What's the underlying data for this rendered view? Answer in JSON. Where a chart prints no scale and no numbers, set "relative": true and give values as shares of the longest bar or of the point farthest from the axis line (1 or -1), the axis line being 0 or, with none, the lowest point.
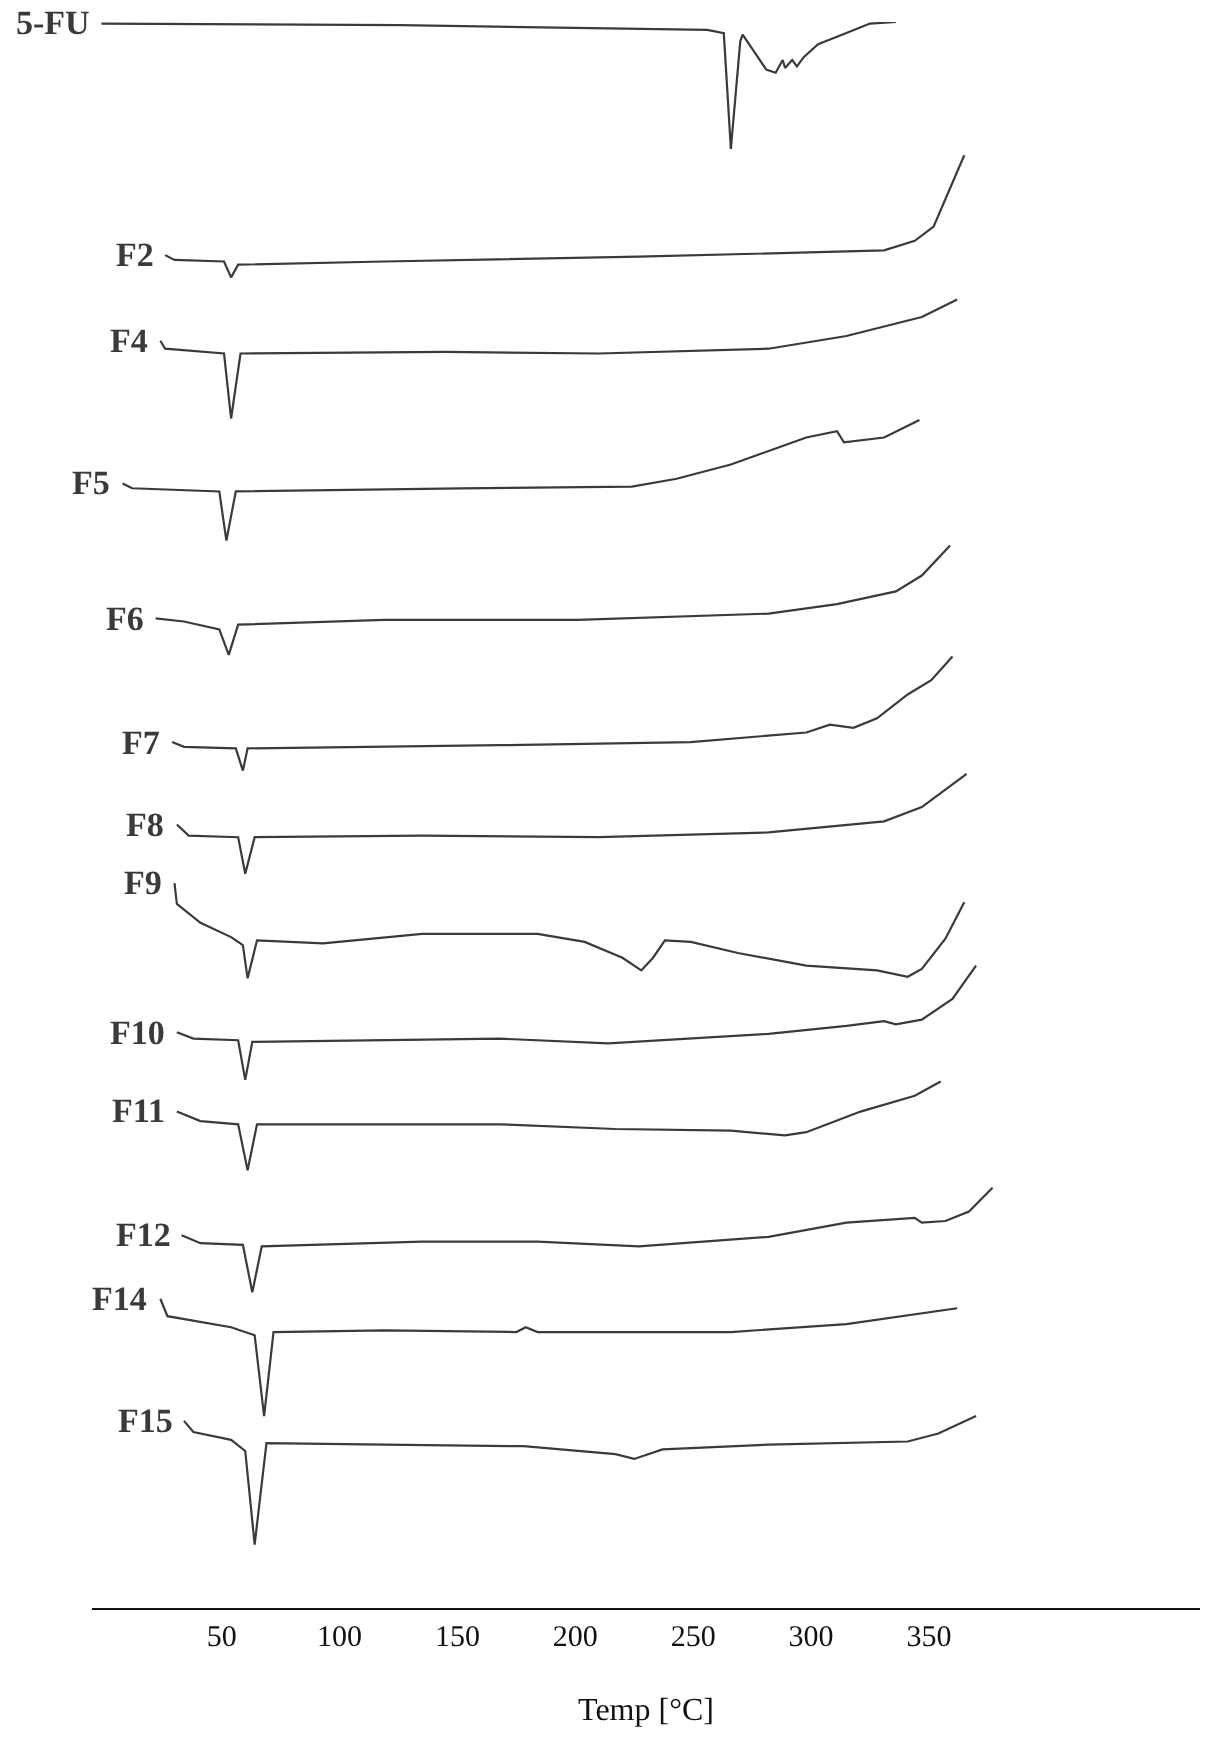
{
  "chart_data": {
    "type": "line",
    "relative": true,
    "xlabel": "Temp [°C]",
    "xlim": [
      -5,
      465
    ],
    "xticks": [
      50,
      100,
      150,
      200,
      250,
      300,
      350
    ],
    "tick_labels": "x",
    "series": [
      {
        "name": "5-FU",
        "color": "#3a3a3a",
        "x": [
          -1,
          126,
          256,
          263,
          266,
          270,
          271,
          281,
          285,
          288,
          289,
          292,
          294,
          297,
          303,
          315,
          325,
          336
        ],
        "values": [
          0.999,
          0.998,
          0.995,
          0.993,
          0.92,
          0.988,
          0.992,
          0.97,
          0.968,
          0.976,
          0.971,
          0.976,
          0.972,
          0.978,
          0.986,
          0.993,
          0.999,
          1.0
        ]
      },
      {
        "name": "F2",
        "color": "#3a3a3a",
        "x": [
          26,
          30,
          51,
          54,
          57,
          119,
          227,
          331,
          344,
          352,
          365
        ],
        "values": [
          0.853,
          0.85,
          0.849,
          0.839,
          0.847,
          0.849,
          0.852,
          0.856,
          0.862,
          0.871,
          0.916
        ]
      },
      {
        "name": "F4",
        "color": "#3a3a3a",
        "x": [
          24,
          26,
          51,
          54,
          58,
          145,
          210,
          282,
          315,
          347,
          362
        ],
        "values": [
          0.799,
          0.794,
          0.791,
          0.75,
          0.791,
          0.792,
          0.791,
          0.794,
          0.802,
          0.814,
          0.825
        ]
      },
      {
        "name": "F5",
        "color": "#3a3a3a",
        "x": [
          8,
          12,
          49,
          52,
          56,
          152,
          224,
          243,
          266,
          298,
          311,
          314,
          331,
          346
        ],
        "values": [
          0.709,
          0.706,
          0.704,
          0.673,
          0.704,
          0.706,
          0.707,
          0.712,
          0.721,
          0.738,
          0.742,
          0.735,
          0.738,
          0.749
        ]
      },
      {
        "name": "F6",
        "color": "#3a3a3a",
        "x": [
          22,
          34,
          49,
          53,
          57,
          119,
          201,
          282,
          311,
          336,
          347,
          359
        ],
        "values": [
          0.624,
          0.622,
          0.617,
          0.601,
          0.62,
          0.623,
          0.623,
          0.627,
          0.633,
          0.641,
          0.651,
          0.67
        ]
      },
      {
        "name": "F7",
        "color": "#3a3a3a",
        "x": [
          29,
          34,
          56,
          59,
          61,
          168,
          249,
          298,
          308,
          318,
          328,
          341,
          351,
          360
        ],
        "values": [
          0.546,
          0.543,
          0.542,
          0.528,
          0.542,
          0.544,
          0.546,
          0.552,
          0.557,
          0.555,
          0.561,
          0.576,
          0.585,
          0.6
        ]
      },
      {
        "name": "F8",
        "color": "#3a3a3a",
        "x": [
          31,
          36,
          57,
          60,
          64,
          135,
          210,
          282,
          331,
          347,
          366
        ],
        "values": [
          0.494,
          0.487,
          0.486,
          0.463,
          0.486,
          0.487,
          0.486,
          0.489,
          0.496,
          0.505,
          0.526
        ]
      },
      {
        "name": "F9",
        "color": "#3a3a3a",
        "x": [
          30,
          31,
          41,
          54,
          59,
          61,
          65,
          93,
          135,
          184,
          204,
          220,
          228,
          233,
          238,
          249,
          269,
          298,
          328,
          341,
          347,
          357,
          365
        ],
        "values": [
          0.457,
          0.444,
          0.432,
          0.423,
          0.418,
          0.397,
          0.421,
          0.419,
          0.425,
          0.425,
          0.42,
          0.41,
          0.402,
          0.41,
          0.421,
          0.42,
          0.413,
          0.405,
          0.402,
          0.398,
          0.403,
          0.422,
          0.445
        ]
      },
      {
        "name": "F10",
        "color": "#3a3a3a",
        "x": [
          31,
          38,
          57,
          60,
          63,
          168,
          214,
          282,
          315,
          331,
          336,
          347,
          360,
          370
        ],
        "values": [
          0.363,
          0.359,
          0.358,
          0.333,
          0.357,
          0.359,
          0.356,
          0.362,
          0.367,
          0.37,
          0.368,
          0.371,
          0.384,
          0.405
        ]
      },
      {
        "name": "F11",
        "color": "#3a3a3a",
        "x": [
          31,
          41,
          57,
          61,
          65,
          168,
          217,
          266,
          289,
          298,
          321,
          344,
          355
        ],
        "values": [
          0.313,
          0.307,
          0.305,
          0.276,
          0.305,
          0.305,
          0.302,
          0.301,
          0.298,
          0.3,
          0.313,
          0.323,
          0.332
        ]
      },
      {
        "name": "F12",
        "color": "#3a3a3a",
        "x": [
          33,
          41,
          59,
          63,
          67,
          135,
          184,
          227,
          282,
          315,
          344,
          347,
          357,
          367,
          377
        ],
        "values": [
          0.235,
          0.23,
          0.229,
          0.199,
          0.228,
          0.231,
          0.231,
          0.228,
          0.234,
          0.243,
          0.246,
          0.243,
          0.244,
          0.25,
          0.265
        ]
      },
      {
        "name": "F14",
        "color": "#3a3a3a",
        "x": [
          24,
          27,
          54,
          64,
          68,
          72,
          119,
          175,
          179,
          184,
          266,
          315,
          362
        ],
        "values": [
          0.195,
          0.184,
          0.177,
          0.172,
          0.121,
          0.174,
          0.175,
          0.174,
          0.177,
          0.174,
          0.174,
          0.179,
          0.189
        ]
      },
      {
        "name": "F15",
        "color": "#3a3a3a",
        "x": [
          34,
          38,
          54,
          60,
          64,
          69,
          119,
          178,
          217,
          225,
          237,
          282,
          341,
          354,
          370
        ],
        "values": [
          0.118,
          0.111,
          0.106,
          0.099,
          0.04,
          0.104,
          0.103,
          0.102,
          0.097,
          0.094,
          0.1,
          0.103,
          0.105,
          0.11,
          0.121
        ]
      }
    ]
  }
}
